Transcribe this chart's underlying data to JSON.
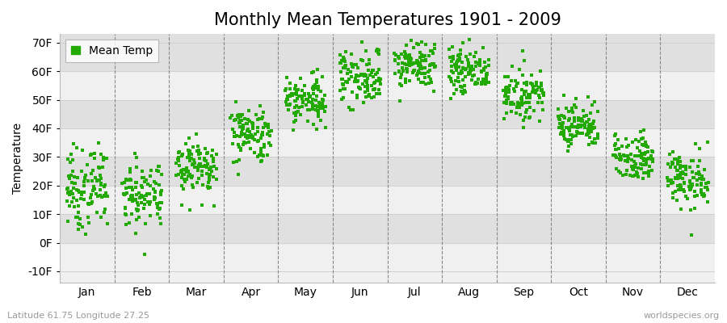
{
  "title": "Monthly Mean Temperatures 1901 - 2009",
  "ylabel": "Temperature",
  "xlabel_labels": [
    "Jan",
    "Feb",
    "Mar",
    "Apr",
    "May",
    "Jun",
    "Jul",
    "Aug",
    "Sep",
    "Oct",
    "Nov",
    "Dec"
  ],
  "ytick_labels": [
    "-10F",
    "0F",
    "10F",
    "20F",
    "30F",
    "40F",
    "50F",
    "60F",
    "70F"
  ],
  "ytick_values": [
    -10,
    0,
    10,
    20,
    30,
    40,
    50,
    60,
    70
  ],
  "ylim": [
    -14,
    73
  ],
  "dot_color": "#22aa00",
  "dot_size": 5,
  "background_color": "#ffffff",
  "plot_bg_color": "#ffffff",
  "band_color_light": "#f0f0f0",
  "band_color_dark": "#e0e0e0",
  "grid_color": "#888888",
  "legend_label": "Mean Temp",
  "footer_left": "Latitude 61.75 Longitude 27.25",
  "footer_right": "worldspecies.org",
  "title_fontsize": 15,
  "axis_fontsize": 10,
  "footer_fontsize": 8,
  "n_years": 109,
  "monthly_means_f": [
    19,
    17,
    27,
    38,
    50,
    58,
    62,
    60,
    52,
    41,
    30,
    22
  ],
  "monthly_stds_f": [
    7,
    6,
    5,
    5,
    5,
    5,
    4,
    4,
    4,
    4,
    4,
    5
  ]
}
